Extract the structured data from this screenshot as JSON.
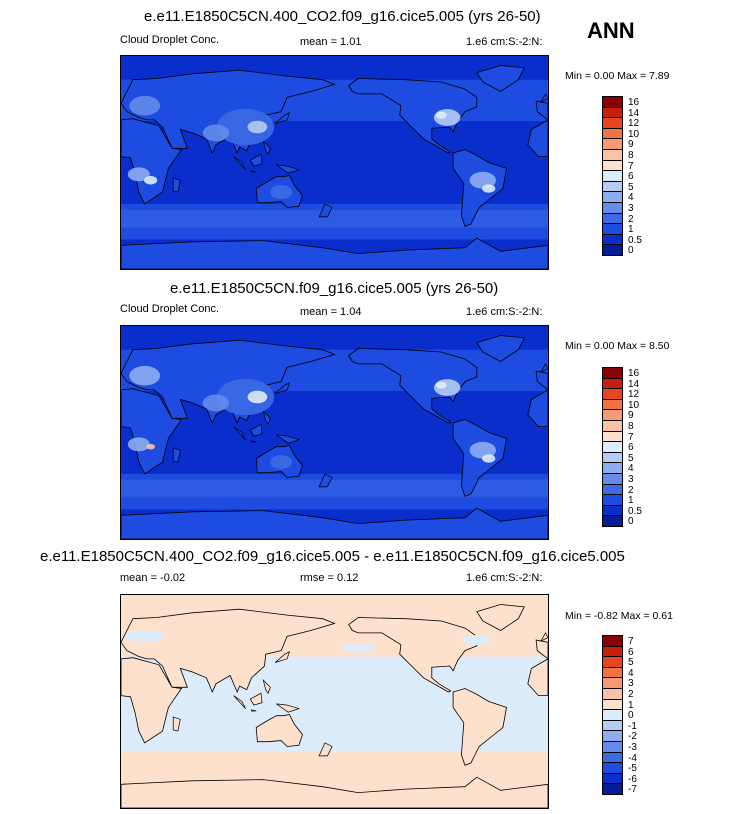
{
  "season": "ANN",
  "panels": [
    {
      "title": "e.e11.E1850C5CN.400_CO2.f09_g16.cice5.005 (yrs 26-50)",
      "left_label": "Cloud Droplet Conc.",
      "center_label": "mean =   1.01",
      "right_label": "1.e6 cm:S:-2:N:",
      "minmax": "Min =   0.00 Max =   7.89"
    },
    {
      "title": "e.e11.E1850C5CN.f09_g16.cice5.005 (yrs 26-50)",
      "left_label": "Cloud Droplet Conc.",
      "center_label": "mean =   1.04",
      "right_label": "1.e6 cm:S:-2:N:",
      "minmax": "Min =   0.00 Max =   8.50"
    },
    {
      "title": "e.e11.E1850C5CN.400_CO2.f09_g16.cice5.005 - e.e11.E1850C5CN.f09_g16.cice5.005",
      "left_label": "mean =  -0.02",
      "center_label": "rmse =   0.12",
      "right_label": "1.e6 cm:S:-2:N:",
      "minmax": "Min =  -0.82 Max =   0.61"
    }
  ],
  "chart_data": [
    {
      "type": "heatmap",
      "title": "e.e11.E1850C5CN.400_CO2.f09_g16.cice5.005 (yrs 26-50)",
      "variable": "Cloud Droplet Conc.",
      "units": "1.e6 cm:S:-2:N:",
      "mean": 1.01,
      "min": 0.0,
      "max": 7.89,
      "colorbar_levels": [
        "16",
        "14",
        "12",
        "10",
        "9",
        "8",
        "7",
        "6",
        "5",
        "4",
        "3",
        "2",
        "1",
        "0.5",
        "0"
      ],
      "colorbar_colors": [
        "#8b0000",
        "#c81e0a",
        "#e8461e",
        "#f27341",
        "#f59b73",
        "#f8c3a6",
        "#fde1cc",
        "#dcecfa",
        "#b4cdf5",
        "#8cadf0",
        "#648cea",
        "#3c6be6",
        "#1e4be0",
        "#0a2ecc",
        "#061c96"
      ]
    },
    {
      "type": "heatmap",
      "title": "e.e11.E1850C5CN.f09_g16.cice5.005 (yrs 26-50)",
      "variable": "Cloud Droplet Conc.",
      "units": "1.e6 cm:S:-2:N:",
      "mean": 1.04,
      "min": 0.0,
      "max": 8.5,
      "colorbar_levels": [
        "16",
        "14",
        "12",
        "10",
        "9",
        "8",
        "7",
        "6",
        "5",
        "4",
        "3",
        "2",
        "1",
        "0.5",
        "0"
      ],
      "colorbar_colors": [
        "#8b0000",
        "#c81e0a",
        "#e8461e",
        "#f27341",
        "#f59b73",
        "#f8c3a6",
        "#fde1cc",
        "#dcecfa",
        "#b4cdf5",
        "#8cadf0",
        "#648cea",
        "#3c6be6",
        "#1e4be0",
        "#0a2ecc",
        "#061c96"
      ]
    },
    {
      "type": "heatmap",
      "title": "e.e11.E1850C5CN.400_CO2.f09_g16.cice5.005 - e.e11.E1850C5CN.f09_g16.cice5.005",
      "units": "1.e6 cm:S:-2:N:",
      "mean": -0.02,
      "rmse": 0.12,
      "min": -0.82,
      "max": 0.61,
      "colorbar_levels": [
        "7",
        "6",
        "5",
        "4",
        "3",
        "2",
        "1",
        "0",
        "-1",
        "-2",
        "-3",
        "-4",
        "-5",
        "-6",
        "-7"
      ],
      "colorbar_colors": [
        "#8b0000",
        "#c81e0a",
        "#e8461e",
        "#f27341",
        "#f59b73",
        "#f8c3a6",
        "#fde1cc",
        "#dcecfa",
        "#b4cdf5",
        "#8cadf0",
        "#648cea",
        "#3c6be6",
        "#1e4be0",
        "#0a2ecc",
        "#061c96"
      ]
    }
  ]
}
